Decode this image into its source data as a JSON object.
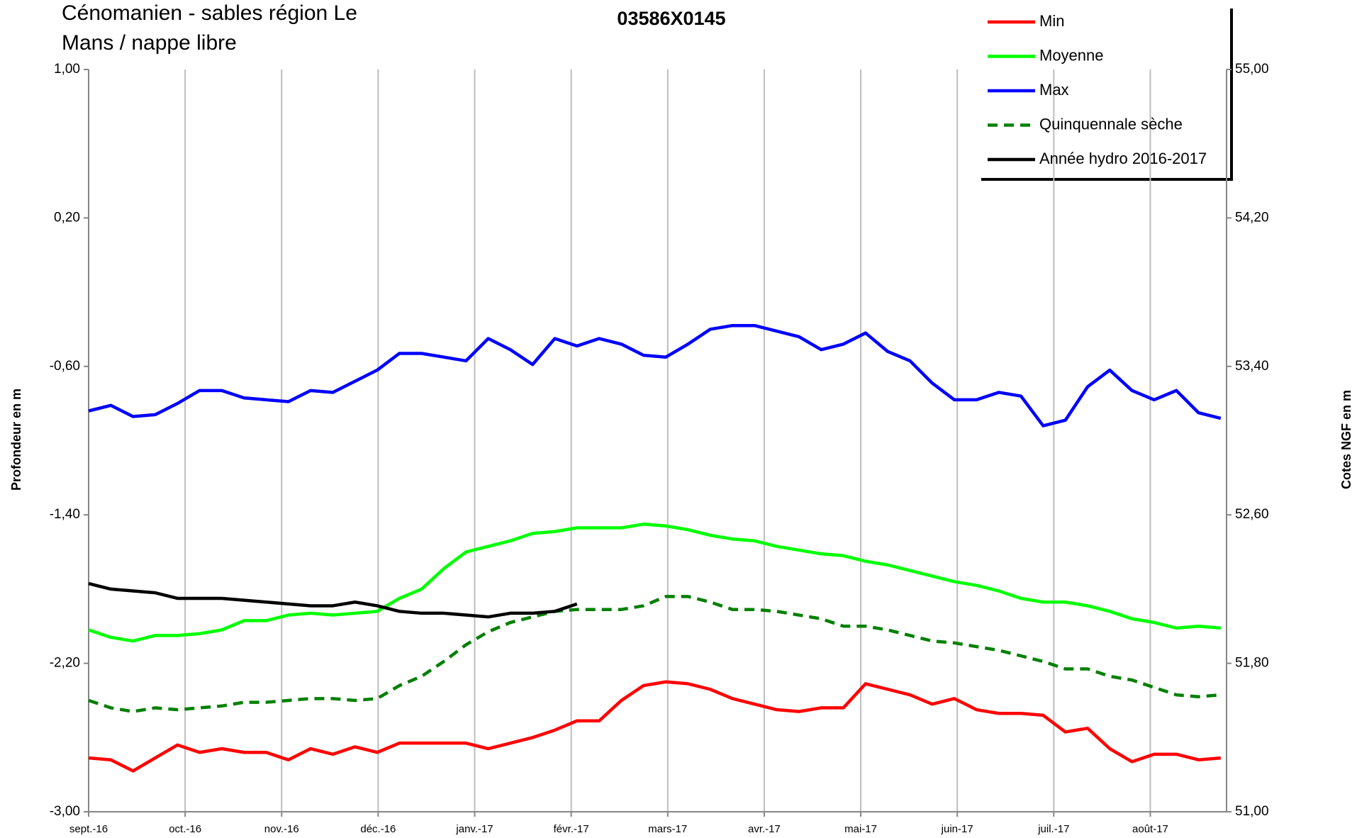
{
  "chart_data": {
    "type": "line",
    "title": "03586X0145",
    "subtitle": [
      "Cénomanien - sables région Le",
      "Mans / nappe libre"
    ],
    "ylabel": "Profondeur en m",
    "y2label": "Cotes NGF en m",
    "xlim": [
      0,
      11.79
    ],
    "xticks": [
      {
        "value": 0,
        "label": "sept.-16"
      },
      {
        "value": 1,
        "label": "oct.-16"
      },
      {
        "value": 2,
        "label": "nov.-16"
      },
      {
        "value": 3,
        "label": "déc.-16"
      },
      {
        "value": 4,
        "label": "janv.-17"
      },
      {
        "value": 5,
        "label": "févr.-17"
      },
      {
        "value": 6,
        "label": "mars-17"
      },
      {
        "value": 7,
        "label": "avr.-17"
      },
      {
        "value": 8,
        "label": "mai-17"
      },
      {
        "value": 9,
        "label": "juin-17"
      },
      {
        "value": 10,
        "label": "juil.-17"
      },
      {
        "value": 11,
        "label": "août-17"
      }
    ],
    "ylim": [
      -3,
      1
    ],
    "yticks": [
      {
        "value": 1,
        "label": "1,00"
      },
      {
        "value": 0.2,
        "label": "0,20"
      },
      {
        "value": -0.6,
        "label": "-0,60"
      },
      {
        "value": -1.4,
        "label": "-1,40"
      },
      {
        "value": -2.2,
        "label": "-2,20"
      },
      {
        "value": -3,
        "label": "-3,00"
      }
    ],
    "y2lim": [
      51,
      55
    ],
    "y2ticks": [
      {
        "value": 55,
        "label": "55,00"
      },
      {
        "value": 54.2,
        "label": "54,20"
      },
      {
        "value": 53.4,
        "label": "53,40"
      },
      {
        "value": 52.6,
        "label": "52,60"
      },
      {
        "value": 51.8,
        "label": "51,80"
      },
      {
        "value": 51,
        "label": "51,00"
      }
    ],
    "grid": "x",
    "legend": "upper right",
    "x": [
      0,
      0.23,
      0.46,
      0.69,
      0.92,
      1.15,
      1.38,
      1.61,
      1.84,
      2.07,
      2.3,
      2.53,
      2.76,
      2.99,
      3.22,
      3.45,
      3.68,
      3.91,
      4.14,
      4.37,
      4.6,
      4.83,
      5.06,
      5.29,
      5.52,
      5.75,
      5.98,
      6.21,
      6.44,
      6.67,
      6.9,
      7.13,
      7.36,
      7.59,
      7.82,
      8.05,
      8.28,
      8.51,
      8.74,
      8.97,
      9.2,
      9.43,
      9.66,
      9.89,
      10.12,
      10.35,
      10.58,
      10.81,
      11.04,
      11.27,
      11.5,
      11.73
    ],
    "series": [
      {
        "name": "Min",
        "color": "#ff0000",
        "dash": false,
        "values": [
          -2.71,
          -2.72,
          -2.78,
          -2.71,
          -2.64,
          -2.68,
          -2.66,
          -2.68,
          -2.68,
          -2.72,
          -2.66,
          -2.69,
          -2.65,
          -2.68,
          -2.63,
          -2.63,
          -2.63,
          -2.63,
          -2.66,
          -2.63,
          -2.6,
          -2.56,
          -2.51,
          -2.51,
          -2.4,
          -2.32,
          -2.3,
          -2.31,
          -2.34,
          -2.39,
          -2.42,
          -2.45,
          -2.46,
          -2.44,
          -2.44,
          -2.31,
          -2.34,
          -2.37,
          -2.42,
          -2.39,
          -2.45,
          -2.47,
          -2.47,
          -2.48,
          -2.57,
          -2.55,
          -2.66,
          -2.73,
          -2.69,
          -2.69,
          -2.72,
          -2.71
        ]
      },
      {
        "name": "Moyenne",
        "color": "#00ff00",
        "dash": false,
        "values": [
          -2.02,
          -2.06,
          -2.08,
          -2.05,
          -2.05,
          -2.04,
          -2.02,
          -1.97,
          -1.97,
          -1.94,
          -1.93,
          -1.94,
          -1.93,
          -1.92,
          -1.85,
          -1.8,
          -1.69,
          -1.6,
          -1.57,
          -1.54,
          -1.5,
          -1.49,
          -1.47,
          -1.47,
          -1.47,
          -1.45,
          -1.46,
          -1.48,
          -1.51,
          -1.53,
          -1.54,
          -1.57,
          -1.59,
          -1.61,
          -1.62,
          -1.65,
          -1.67,
          -1.7,
          -1.73,
          -1.76,
          -1.78,
          -1.81,
          -1.85,
          -1.87,
          -1.87,
          -1.89,
          -1.92,
          -1.96,
          -1.98,
          -2.01,
          -2.0,
          -2.01
        ]
      },
      {
        "name": "Max",
        "color": "#0000ff",
        "dash": false,
        "values": [
          -0.84,
          -0.81,
          -0.87,
          -0.86,
          -0.8,
          -0.73,
          -0.73,
          -0.77,
          -0.78,
          -0.79,
          -0.73,
          -0.74,
          -0.68,
          -0.62,
          -0.53,
          -0.53,
          -0.55,
          -0.57,
          -0.45,
          -0.51,
          -0.59,
          -0.45,
          -0.49,
          -0.45,
          -0.48,
          -0.54,
          -0.55,
          -0.48,
          -0.4,
          -0.38,
          -0.38,
          -0.41,
          -0.44,
          -0.51,
          -0.48,
          -0.42,
          -0.52,
          -0.57,
          -0.69,
          -0.78,
          -0.78,
          -0.74,
          -0.76,
          -0.92,
          -0.89,
          -0.71,
          -0.62,
          -0.73,
          -0.78,
          -0.73,
          -0.85,
          -0.88
        ]
      },
      {
        "name": "Quinquennale sèche",
        "color": "#008000",
        "dash": true,
        "values": [
          -2.4,
          -2.44,
          -2.46,
          -2.44,
          -2.45,
          -2.44,
          -2.43,
          -2.41,
          -2.41,
          -2.4,
          -2.39,
          -2.39,
          -2.4,
          -2.39,
          -2.32,
          -2.27,
          -2.19,
          -2.1,
          -2.03,
          -1.98,
          -1.95,
          -1.92,
          -1.91,
          -1.91,
          -1.91,
          -1.89,
          -1.84,
          -1.84,
          -1.87,
          -1.91,
          -1.91,
          -1.92,
          -1.94,
          -1.96,
          -2.0,
          -2.0,
          -2.02,
          -2.05,
          -2.08,
          -2.09,
          -2.11,
          -2.13,
          -2.16,
          -2.19,
          -2.23,
          -2.23,
          -2.27,
          -2.29,
          -2.33,
          -2.37,
          -2.38,
          -2.37
        ]
      },
      {
        "name": "Année hydro 2016-2017",
        "color": "#000000",
        "dash": false,
        "values": [
          -1.77,
          -1.8,
          -1.81,
          -1.82,
          -1.85,
          -1.85,
          -1.85,
          -1.86,
          -1.87,
          -1.88,
          -1.89,
          -1.89,
          -1.87,
          -1.89,
          -1.92,
          -1.93,
          -1.93,
          -1.94,
          -1.95,
          -1.93,
          -1.93,
          -1.92,
          -1.88,
          null,
          null,
          null,
          null,
          null,
          null,
          null,
          null,
          null,
          null,
          null,
          null,
          null,
          null,
          null,
          null,
          null,
          null,
          null,
          null,
          null,
          null,
          null,
          null,
          null,
          null,
          null,
          null,
          null
        ]
      }
    ]
  }
}
